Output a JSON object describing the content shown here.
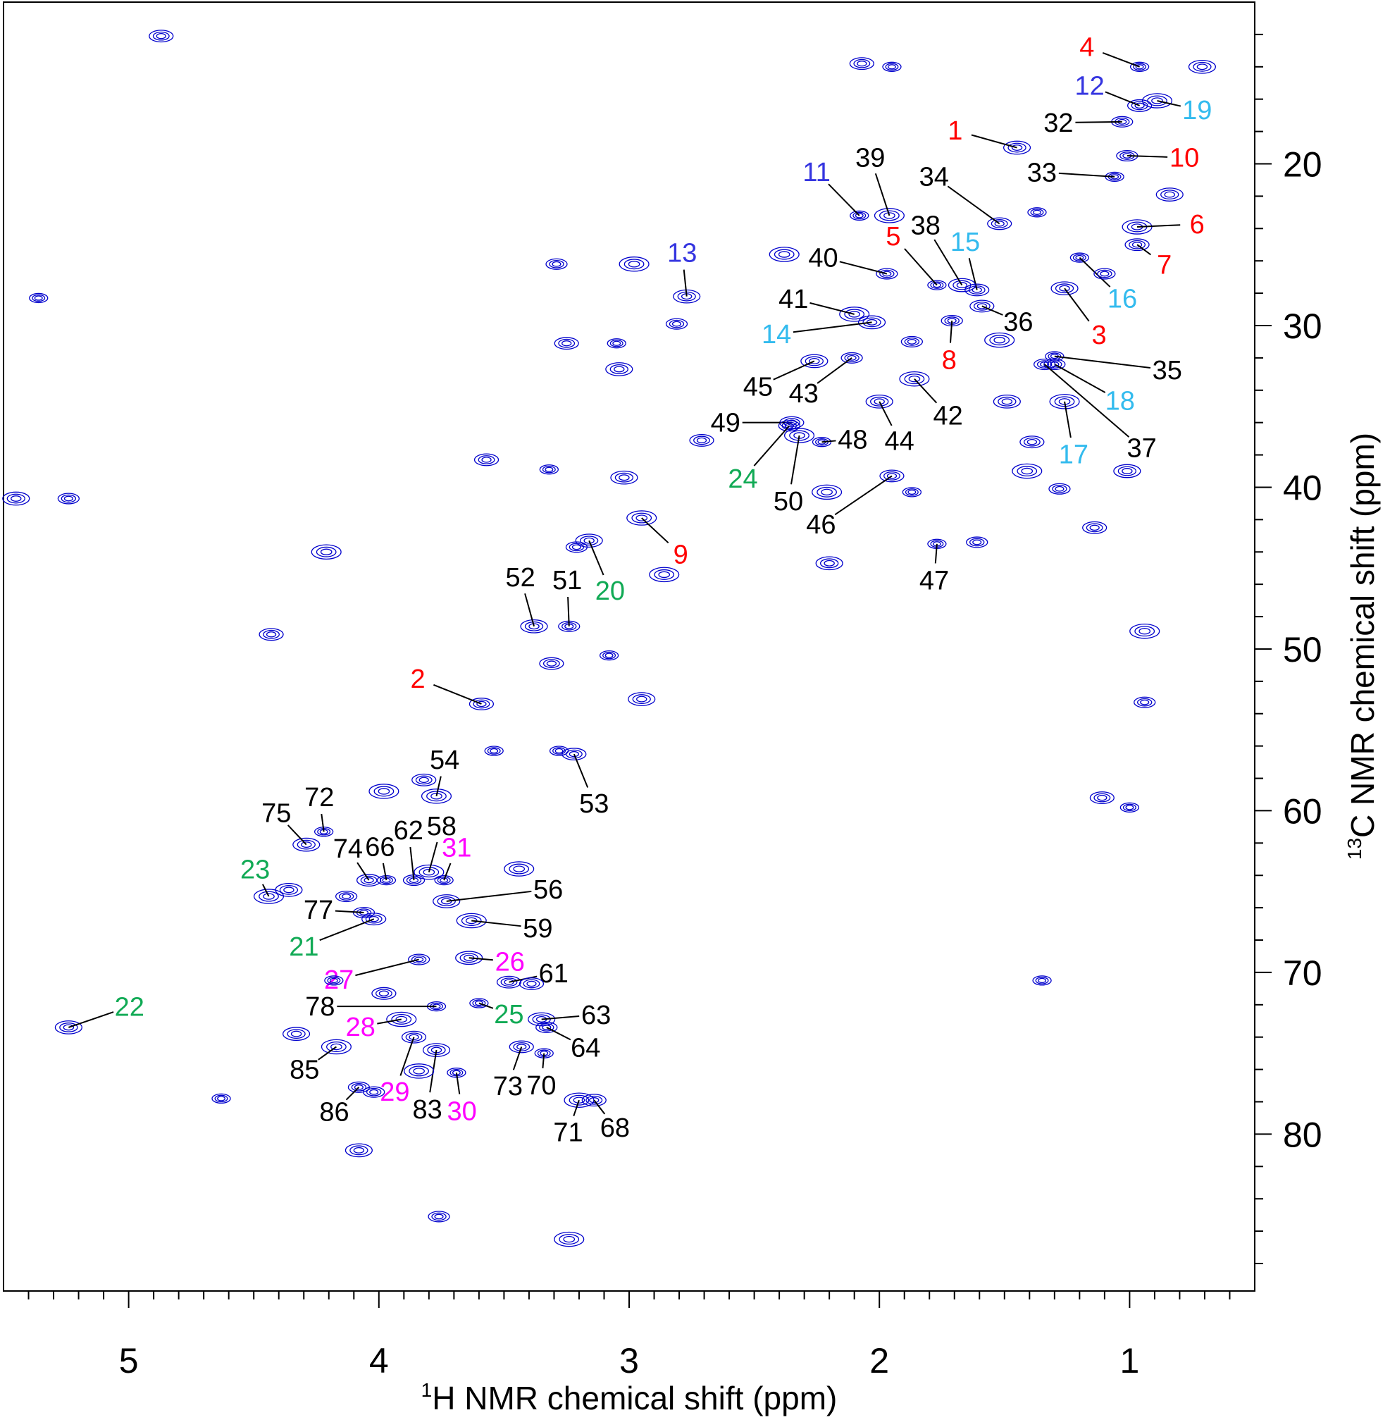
{
  "chart_data": {
    "type": "scatter",
    "xlabel_sup": "1",
    "xlabel": "H NMR chemical shift (ppm)",
    "ylabel_sup": "13",
    "ylabel": "C NMR chemical shift (ppm)",
    "xlim": [
      5.5,
      0.5
    ],
    "ylim": [
      10,
      89.7
    ],
    "xticks": [
      5,
      4,
      3,
      2,
      1
    ],
    "yticks": [
      20,
      30,
      40,
      50,
      60,
      70,
      80
    ],
    "xticks_minor": [
      0.6,
      0.7,
      0.8,
      0.9,
      1.1,
      1.2,
      1.3,
      1.4,
      1.5,
      1.6,
      1.7,
      1.8,
      1.9,
      2.1,
      2.2,
      2.3,
      2.4,
      2.5,
      2.6,
      2.7,
      2.8,
      2.9,
      3.1,
      3.2,
      3.3,
      3.4,
      3.5,
      3.6,
      3.7,
      3.8,
      3.9,
      4.1,
      4.2,
      4.3,
      4.4,
      4.5,
      4.6,
      4.7,
      4.8,
      4.9,
      5.1,
      5.2,
      5.3,
      5.4
    ],
    "yticks_minor": [
      12,
      14,
      16,
      18,
      22,
      24,
      26,
      28,
      32,
      34,
      36,
      38,
      42,
      44,
      46,
      48,
      52,
      54,
      56,
      58,
      62,
      64,
      66,
      68,
      72,
      74,
      76,
      78,
      82,
      84,
      86,
      88
    ],
    "peak_color": "#0000cc",
    "series": [
      {
        "color": "#ff0000",
        "labels": [
          "4",
          "1",
          "10",
          "6",
          "7",
          "5",
          "3",
          "8",
          "9",
          "2"
        ],
        "x": [
          0.96,
          1.45,
          1.01,
          0.97,
          0.97,
          1.77,
          1.26,
          1.71,
          2.95,
          3.59
        ],
        "y": [
          14.0,
          19.0,
          19.5,
          23.9,
          25.0,
          27.5,
          27.7,
          29.7,
          41.9,
          53.4
        ]
      },
      {
        "color": "#3535e0",
        "labels": [
          "12",
          "11",
          "13"
        ],
        "x": [
          0.96,
          2.08,
          2.77
        ],
        "y": [
          16.4,
          23.2,
          28.2
        ]
      },
      {
        "color": "#33bbee",
        "labels": [
          "19",
          "15",
          "16",
          "14",
          "18",
          "17"
        ],
        "x": [
          0.89,
          1.61,
          1.2,
          2.03,
          1.3,
          1.26
        ],
        "y": [
          16.1,
          27.8,
          25.8,
          29.8,
          32.4,
          34.7
        ]
      },
      {
        "color": "#000000",
        "labels": [
          "32",
          "39",
          "34",
          "33",
          "38",
          "40",
          "41",
          "36",
          "35",
          "45",
          "43",
          "42",
          "49",
          "48",
          "44",
          "37",
          "50",
          "46",
          "47",
          "52",
          "51",
          "54",
          "53",
          "72",
          "75",
          "62",
          "58",
          "74",
          "66",
          "56",
          "77",
          "59",
          "61",
          "78",
          "63",
          "64",
          "85",
          "73",
          "70",
          "83",
          "86",
          "71",
          "68"
        ],
        "x": [
          1.03,
          1.96,
          1.52,
          1.06,
          1.67,
          1.97,
          2.1,
          1.59,
          1.3,
          2.26,
          2.11,
          1.86,
          2.35,
          2.23,
          2.0,
          1.34,
          2.32,
          1.95,
          1.77,
          3.38,
          3.24,
          3.77,
          3.22,
          4.22,
          4.29,
          3.86,
          3.8,
          4.04,
          3.97,
          3.73,
          4.06,
          3.63,
          3.48,
          3.77,
          3.35,
          3.33,
          4.17,
          3.43,
          3.34,
          3.77,
          4.08,
          3.2,
          3.14
        ],
        "y": [
          17.4,
          23.2,
          23.7,
          20.8,
          27.5,
          26.8,
          29.3,
          28.8,
          31.9,
          32.2,
          32.0,
          33.3,
          36.0,
          37.2,
          34.7,
          32.4,
          36.8,
          39.3,
          43.5,
          48.6,
          48.6,
          59.1,
          56.5,
          61.3,
          62.1,
          64.3,
          63.8,
          64.3,
          64.3,
          65.6,
          66.3,
          66.8,
          70.6,
          72.1,
          72.9,
          73.4,
          74.6,
          74.6,
          75.0,
          74.8,
          77.1,
          77.9,
          77.9
        ]
      },
      {
        "color": "#11aa55",
        "labels": [
          "20",
          "24",
          "23",
          "21",
          "25",
          "22"
        ],
        "x": [
          3.16,
          2.36,
          4.44,
          4.02,
          3.6,
          5.24
        ],
        "y": [
          43.3,
          36.2,
          65.3,
          66.7,
          71.9,
          73.4
        ]
      },
      {
        "color": "#ff00ff",
        "labels": [
          "31",
          "26",
          "27",
          "28",
          "29",
          "30"
        ],
        "x": [
          3.74,
          3.64,
          3.84,
          3.91,
          3.86,
          3.69
        ],
        "y": [
          64.3,
          69.1,
          69.2,
          72.9,
          74.0,
          76.2
        ]
      },
      {
        "x": [
          4.87,
          5.36,
          5.45,
          5.24,
          4.21,
          4.43,
          4.63,
          4.08,
          3.76,
          3.24,
          2.07,
          1.95,
          0.71,
          3.29,
          2.98,
          3.25,
          3.05,
          3.04,
          2.81,
          2.38,
          3.57,
          3.32,
          3.02,
          3.21,
          2.86,
          3.31,
          3.08,
          2.95,
          0.94,
          0.94,
          1.11,
          1.0,
          1.01,
          1.28,
          1.41,
          1.14,
          1.37,
          0.84,
          1.87,
          1.52,
          1.39,
          1.87,
          2.2,
          1.61,
          2.21,
          2.71,
          1.35,
          1.49,
          1.1,
          3.98,
          3.82,
          3.54,
          4.36,
          4.13,
          3.44,
          3.98,
          4.18,
          4.33,
          4.02,
          3.84,
          3.39,
          3.28
        ],
        "y": [
          12.1,
          28.3,
          40.7,
          40.7,
          44.0,
          49.1,
          77.8,
          81.0,
          85.1,
          86.5,
          13.8,
          14.0,
          14.0,
          26.2,
          26.2,
          31.1,
          31.1,
          32.7,
          29.9,
          25.6,
          38.3,
          38.9,
          39.4,
          43.7,
          45.4,
          50.9,
          50.4,
          53.1,
          53.3,
          48.9,
          59.2,
          59.8,
          39.0,
          40.1,
          39.0,
          42.5,
          23.0,
          21.9,
          31.0,
          30.9,
          37.2,
          40.3,
          44.7,
          43.4,
          40.3,
          37.1,
          70.5,
          34.7,
          26.8,
          58.8,
          58.1,
          56.3,
          64.9,
          65.3,
          63.6,
          71.3,
          70.5,
          73.8,
          77.4,
          76.1,
          70.7,
          56.3
        ]
      }
    ]
  }
}
